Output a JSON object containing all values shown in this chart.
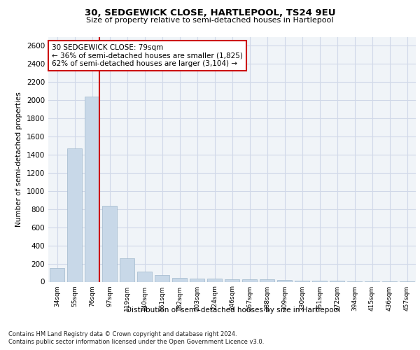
{
  "title_line1": "30, SEDGEWICK CLOSE, HARTLEPOOL, TS24 9EU",
  "title_line2": "Size of property relative to semi-detached houses in Hartlepool",
  "xlabel": "Distribution of semi-detached houses by size in Hartlepool",
  "ylabel": "Number of semi-detached properties",
  "categories": [
    "34sqm",
    "55sqm",
    "76sqm",
    "97sqm",
    "119sqm",
    "140sqm",
    "161sqm",
    "182sqm",
    "203sqm",
    "224sqm",
    "246sqm",
    "267sqm",
    "288sqm",
    "309sqm",
    "330sqm",
    "351sqm",
    "372sqm",
    "394sqm",
    "415sqm",
    "436sqm",
    "457sqm"
  ],
  "values": [
    150,
    1470,
    2040,
    835,
    255,
    115,
    70,
    45,
    35,
    35,
    30,
    25,
    25,
    20,
    15,
    10,
    8,
    5,
    4,
    3,
    2
  ],
  "bar_color": "#c8d8e8",
  "bar_edge_color": "#a0b8cc",
  "red_line_x": 2,
  "annotation_text": "30 SEDGEWICK CLOSE: 79sqm\n← 36% of semi-detached houses are smaller (1,825)\n62% of semi-detached houses are larger (3,104) →",
  "annotation_box_color": "#ffffff",
  "annotation_box_edge_color": "#cc0000",
  "ylim": [
    0,
    2700
  ],
  "yticks": [
    0,
    200,
    400,
    600,
    800,
    1000,
    1200,
    1400,
    1600,
    1800,
    2000,
    2200,
    2400,
    2600
  ],
  "footnote_line1": "Contains HM Land Registry data © Crown copyright and database right 2024.",
  "footnote_line2": "Contains public sector information licensed under the Open Government Licence v3.0.",
  "grid_color": "#d0d8e8",
  "bg_color": "#f0f4f8"
}
